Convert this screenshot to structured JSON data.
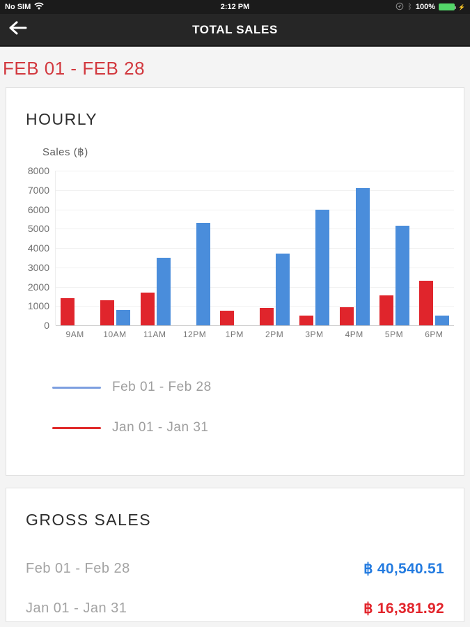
{
  "status_bar": {
    "carrier": "No SIM",
    "time": "2:12 PM",
    "battery_percent": "100%",
    "battery_color": "#53d769"
  },
  "nav": {
    "title": "TOTAL SALES"
  },
  "date_range": "FEB 01 - FEB 28",
  "hourly": {
    "title": "HOURLY",
    "axis_title": "Sales (฿)",
    "legend": [
      {
        "label": "Feb 01 - Feb 28",
        "color": "#7d9fe0"
      },
      {
        "label": "Jan 01 - Jan 31",
        "color": "#e02a2a"
      }
    ]
  },
  "chart_data": {
    "type": "bar",
    "title": "HOURLY",
    "xlabel": "",
    "ylabel": "Sales (฿)",
    "categories": [
      "9AM",
      "10AM",
      "11AM",
      "12PM",
      "1PM",
      "2PM",
      "3PM",
      "4PM",
      "5PM",
      "6PM"
    ],
    "series": [
      {
        "name": "Jan 01 - Jan 31",
        "color": "#e0252c",
        "values": [
          1400,
          1300,
          1700,
          0,
          750,
          900,
          500,
          950,
          1550,
          2300
        ]
      },
      {
        "name": "Feb 01 - Feb 28",
        "color": "#4a8ddb",
        "values": [
          0,
          780,
          3500,
          5300,
          0,
          3700,
          6000,
          7100,
          5150,
          500
        ]
      }
    ],
    "ylim": [
      0,
      8000
    ],
    "yticks": [
      0,
      1000,
      2000,
      3000,
      4000,
      5000,
      6000,
      7000,
      8000
    ],
    "grid": true,
    "legend_position": "bottom-left"
  },
  "gross_sales": {
    "title": "GROSS SALES",
    "rows": [
      {
        "label": "Feb 01 - Feb 28",
        "amount": "฿ 40,540.51",
        "color": "#237be0"
      },
      {
        "label": "Jan 01 - Jan 31",
        "amount": "฿ 16,381.92",
        "color": "#e2242b"
      }
    ]
  }
}
